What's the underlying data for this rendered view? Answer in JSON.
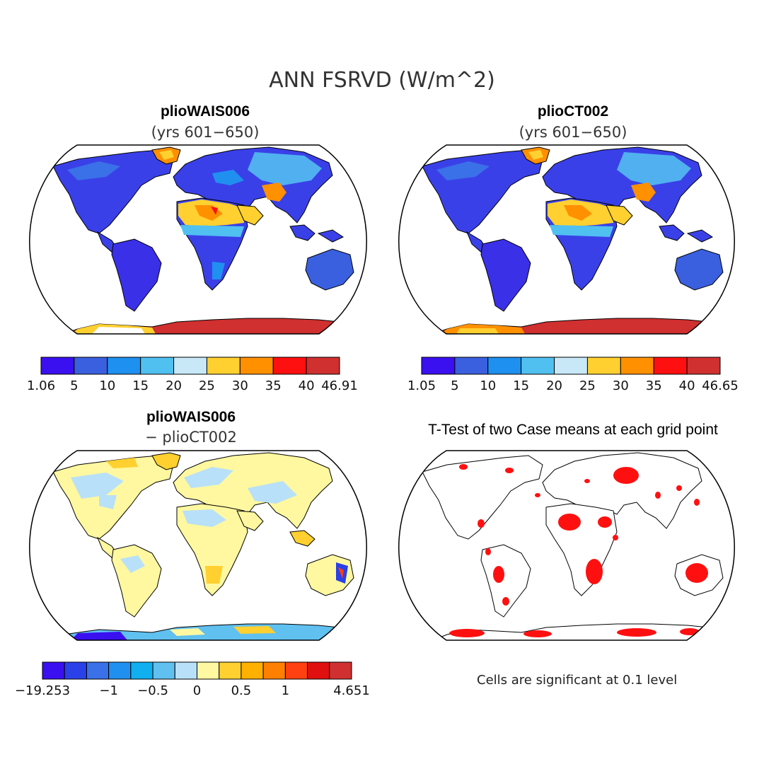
{
  "figure": {
    "title": "ANN FSRVD (W/m^2)"
  },
  "panels": [
    {
      "name": "plioWAIS006",
      "subtitle": "(yrs 601−650)",
      "colorbar": {
        "colors": [
          "#3a10f0",
          "#3a60e0",
          "#1e90f0",
          "#50c0f0",
          "#c8e8f8",
          "#ffd030",
          "#ff9000",
          "#ff1010",
          "#d03030"
        ],
        "labels": [
          "1.06",
          "5",
          "10",
          "15",
          "20",
          "25",
          "30",
          "35",
          "40",
          "46.91"
        ]
      }
    },
    {
      "name": "plioCT002",
      "subtitle": "(yrs 601−650)",
      "colorbar": {
        "colors": [
          "#3a10f0",
          "#3a60e0",
          "#1e90f0",
          "#50c0f0",
          "#c8e8f8",
          "#ffd030",
          "#ff9000",
          "#ff1010",
          "#d03030"
        ],
        "labels": [
          "1.05",
          "5",
          "10",
          "15",
          "20",
          "25",
          "30",
          "35",
          "40",
          "46.65"
        ]
      }
    },
    {
      "name": "plioWAIS006",
      "subtitle": "− plioCT002",
      "colorbar": {
        "colors": [
          "#3a10f0",
          "#2a40e8",
          "#3a70e8",
          "#2090f0",
          "#10b0f0",
          "#60c0f0",
          "#b8e0f8",
          "#fff8a0",
          "#ffd030",
          "#ffb000",
          "#ff8000",
          "#ff4010",
          "#e01010",
          "#d03030"
        ],
        "labels": [
          "−19.253",
          "−1",
          "−0.5",
          "0",
          "0.5",
          "1",
          "4.651"
        ]
      }
    },
    {
      "name": "T-Test of two Case means at each grid point",
      "note": "Cells are significant at 0.1 level"
    }
  ]
}
